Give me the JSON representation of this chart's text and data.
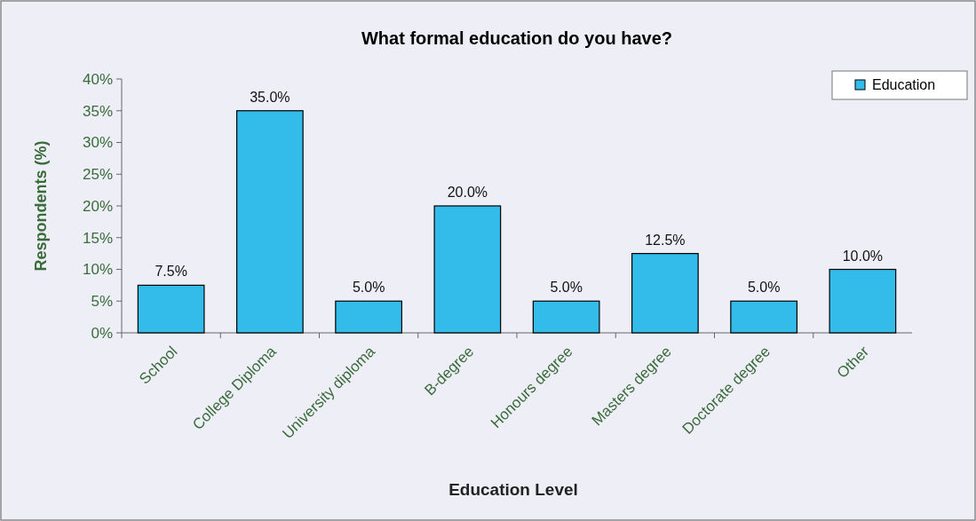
{
  "chart_data": {
    "type": "bar",
    "title": "What formal education do you have?",
    "xlabel": "Education Level",
    "ylabel": "Respondents (%)",
    "categories": [
      "School",
      "College  Diploma",
      "University diploma",
      "B-degree",
      "Honours degree",
      "Masters degree",
      "Doctorate degree",
      "Other"
    ],
    "series": [
      {
        "name": "Education",
        "color": "#33bbea",
        "values": [
          7.5,
          35,
          5,
          20,
          5,
          12.5,
          5,
          10
        ],
        "value_labels": [
          "7.5%",
          "35.0%",
          "5.0%",
          "20.0%",
          "5.0%",
          "12.5%",
          "5.0%",
          "10.0%"
        ]
      }
    ],
    "ylim": [
      0,
      40
    ],
    "yticks": [
      {
        "value": 0,
        "label": "0%"
      },
      {
        "value": 5,
        "label": "5%"
      },
      {
        "value": 10,
        "label": "10%"
      },
      {
        "value": 15,
        "label": "15%"
      },
      {
        "value": 20,
        "label": "20%"
      },
      {
        "value": 25,
        "label": "25%"
      },
      {
        "value": 30,
        "label": "30%"
      },
      {
        "value": 35,
        "label": "35%"
      },
      {
        "value": 40,
        "label": "40%"
      }
    ],
    "grid": false,
    "legend": "top right"
  }
}
